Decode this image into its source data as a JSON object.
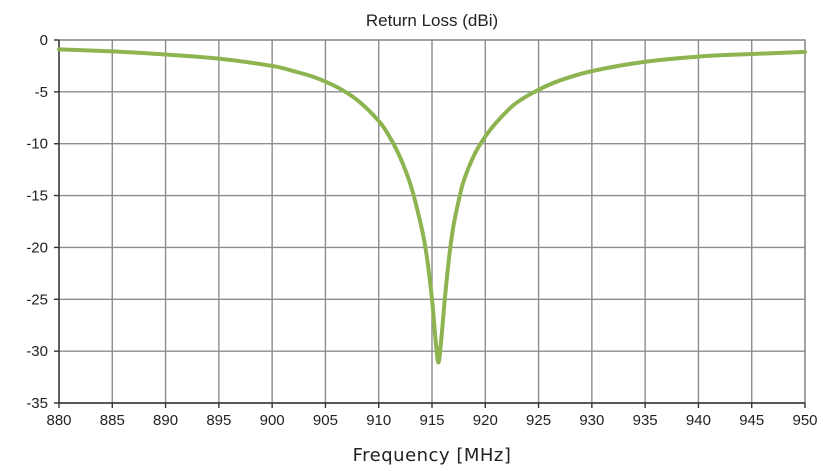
{
  "chart_data": {
    "type": "line",
    "title": "Return Loss (dBi)",
    "xlabel": "Frequency [MHz]",
    "ylabel": "",
    "xlim": [
      880,
      950
    ],
    "ylim": [
      -35,
      0
    ],
    "xticks": [
      880,
      885,
      890,
      895,
      900,
      905,
      910,
      915,
      920,
      925,
      930,
      935,
      940,
      945,
      950
    ],
    "yticks": [
      0,
      -5,
      -10,
      -15,
      -20,
      -25,
      -30,
      -35
    ],
    "grid": true,
    "legend": "none",
    "series": [
      {
        "color": "#8db451",
        "x": [
          880,
          885,
          890,
          895,
          900,
          902,
          904,
          906,
          908,
          910,
          911,
          912,
          913,
          914,
          914.5,
          915,
          915.3,
          915.6,
          915.9,
          916.2,
          916.6,
          917,
          917.5,
          918,
          919,
          920,
          921,
          922,
          923,
          925,
          927,
          930,
          935,
          940,
          945,
          950
        ],
        "y": [
          -0.9,
          -1.1,
          -1.4,
          -1.8,
          -2.5,
          -3.0,
          -3.6,
          -4.5,
          -5.8,
          -7.8,
          -9.3,
          -11.3,
          -14.0,
          -18.0,
          -20.8,
          -25.0,
          -28.5,
          -31.1,
          -28.5,
          -25.0,
          -21.0,
          -18.0,
          -15.5,
          -13.5,
          -11.0,
          -9.3,
          -8.0,
          -6.9,
          -6.0,
          -4.8,
          -3.9,
          -3.0,
          -2.1,
          -1.6,
          -1.35,
          -1.15
        ]
      }
    ]
  }
}
